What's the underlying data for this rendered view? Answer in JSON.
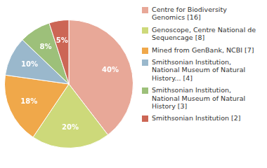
{
  "chart_data": {
    "type": "pie",
    "categories": [
      "Centre for Biodiversity\nGenomics [16]",
      "Genoscope, Centre National de\nSequencage [8]",
      "Mined from GenBank, NCBI [7]",
      "Smithsonian Institution,\nNational Museum of Natural\nHistory... [4]",
      "Smithsonian Institution,\nNational Museum of Natural\nHistory [3]",
      "Smithsonian Institution [2]"
    ],
    "values": [
      40,
      20,
      18,
      10,
      8,
      5
    ],
    "value_labels": [
      "40%",
      "20%",
      "18%",
      "10%",
      "8%",
      "5%"
    ],
    "colors": [
      "#e8a898",
      "#cdd97a",
      "#f0a84a",
      "#9ab8cc",
      "#9dc07a",
      "#cc6655"
    ],
    "data_labels": true,
    "legend": "right"
  }
}
